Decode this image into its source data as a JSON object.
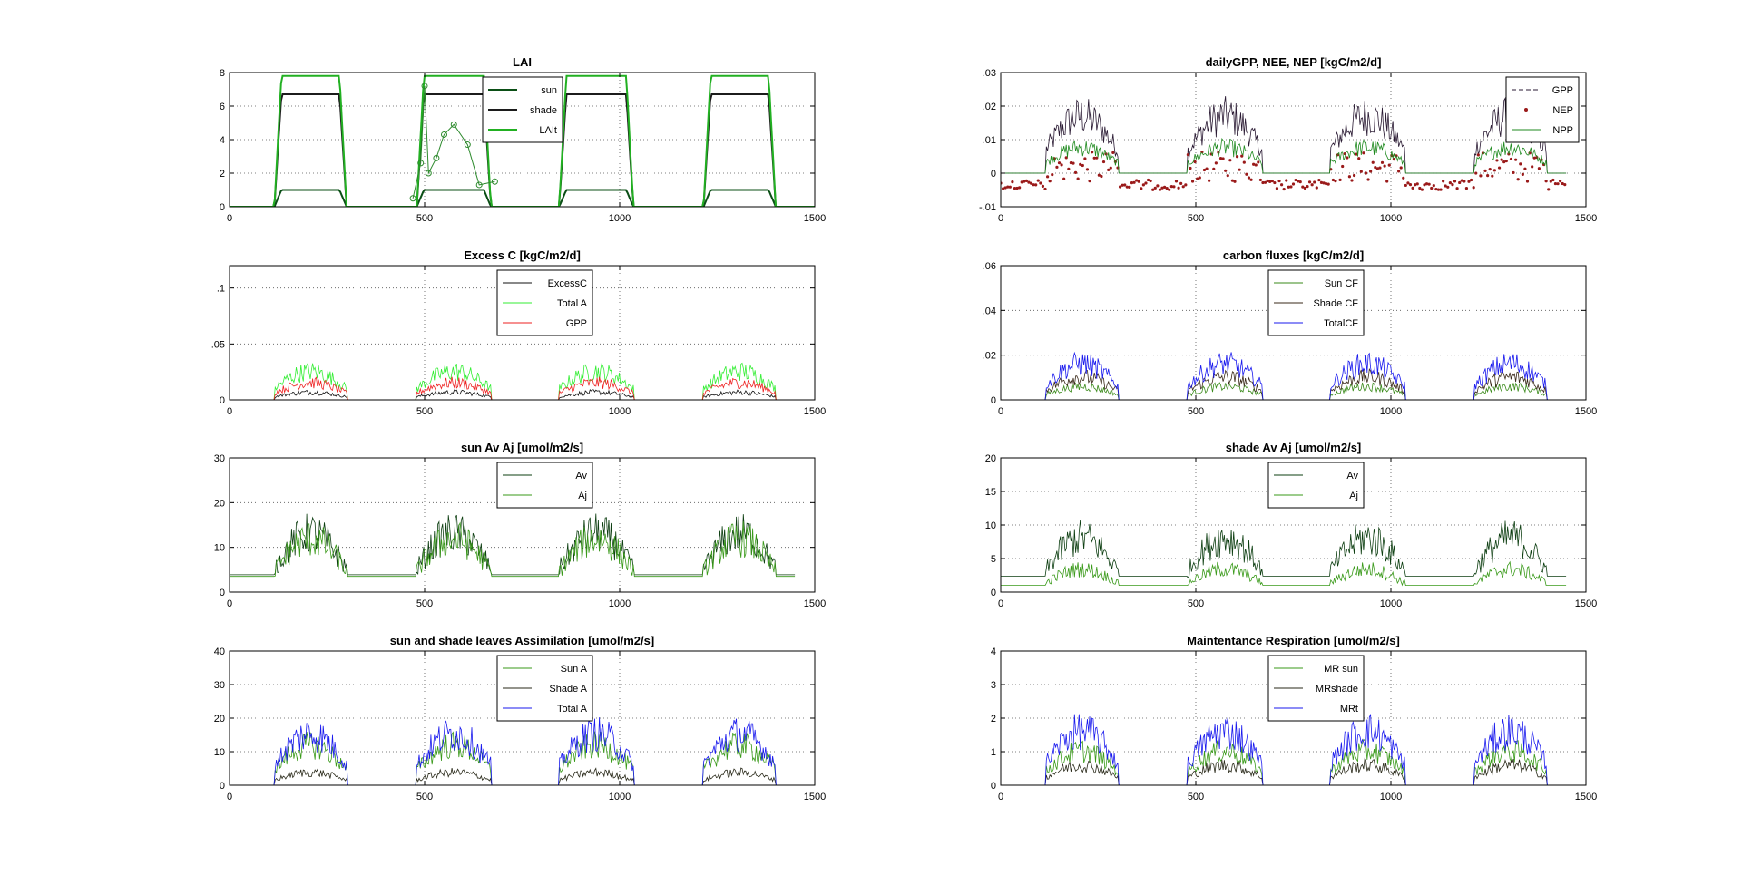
{
  "chart_data": [
    {
      "type": "line",
      "title": "LAI",
      "xlim": [
        0,
        1500
      ],
      "ylim": [
        0,
        8
      ],
      "xticks": [
        0,
        500,
        1000,
        1500
      ],
      "yticks": [
        0,
        2,
        4,
        6,
        8
      ],
      "legend": "top-center",
      "grid": true,
      "series": [
        {
          "name": "sun",
          "color": "#0b4f16",
          "style": "season",
          "ymax": 1.0
        },
        {
          "name": "shade",
          "color": "#1c1c1c",
          "style": "season",
          "ymax": 6.7
        },
        {
          "name": "LAIt",
          "color": "#22b022",
          "style": "season",
          "ymax": 7.8
        }
      ],
      "extra_points": {
        "color": "#2d8a2d",
        "x": [
          470,
          490,
          500,
          510,
          530,
          550,
          575,
          610,
          640,
          680
        ],
        "y": [
          0.5,
          2.6,
          7.2,
          2.0,
          2.9,
          4.3,
          4.9,
          3.7,
          1.3,
          1.5
        ]
      }
    },
    {
      "type": "line",
      "title": "dailyGPP, NEE, NEP [kgC/m2/d]",
      "xlim": [
        0,
        1500
      ],
      "ylim": [
        -0.01,
        0.03
      ],
      "xticks": [
        0,
        500,
        1000,
        1500
      ],
      "yticks": [
        -0.01,
        0,
        0.01,
        0.02,
        0.03
      ],
      "legend": "top-right",
      "grid": true,
      "series": [
        {
          "name": "GPP",
          "color": "#2a1a33",
          "style": "season",
          "ymax": 0.02
        },
        {
          "name": "NEP",
          "color": "#9a1a1a",
          "style": "markers",
          "ymax": 0.007
        },
        {
          "name": "NPP",
          "color": "#1f8a1f",
          "style": "season",
          "ymax": 0.009
        }
      ]
    },
    {
      "type": "line",
      "title": "Excess C [kgC/m2/d]",
      "xlim": [
        0,
        1500
      ],
      "ylim": [
        0,
        0.12
      ],
      "xticks": [
        0,
        500,
        1000,
        1500
      ],
      "yticks": [
        0,
        0.05,
        0.1
      ],
      "legend": "top-center",
      "grid": true,
      "series": [
        {
          "name": "ExcessC",
          "color": "#111111",
          "style": "season",
          "ymax": 0.008
        },
        {
          "name": "Total A",
          "color": "#33ee33",
          "style": "season",
          "ymax": 0.03
        },
        {
          "name": "GPP",
          "color": "#ee2222",
          "style": "season",
          "ymax": 0.018
        }
      ]
    },
    {
      "type": "line",
      "title": "carbon fluxes [kgC/m2/d]",
      "xlim": [
        0,
        1500
      ],
      "ylim": [
        0,
        0.06
      ],
      "xticks": [
        0,
        500,
        1000,
        1500
      ],
      "yticks": [
        0,
        0.02,
        0.04,
        0.06
      ],
      "legend": "top-center",
      "grid": true,
      "series": [
        {
          "name": "Sun CF",
          "color": "#3a8a1a",
          "style": "season",
          "ymax": 0.007
        },
        {
          "name": "Shade CF",
          "color": "#3a2a1a",
          "style": "season",
          "ymax": 0.012
        },
        {
          "name": "TotalCF",
          "color": "#1a1aee",
          "style": "season",
          "ymax": 0.019
        }
      ]
    },
    {
      "type": "line",
      "title": "sun Av Aj [umol/m2/s]",
      "xlim": [
        0,
        1500
      ],
      "ylim": [
        0,
        30
      ],
      "xticks": [
        0,
        500,
        1000,
        1500
      ],
      "yticks": [
        0,
        10,
        20,
        30
      ],
      "legend": "top-center",
      "grid": true,
      "series": [
        {
          "name": "Av",
          "color": "#0e3f12",
          "style": "season",
          "ymax": 15.5
        },
        {
          "name": "Aj",
          "color": "#3a9a1a",
          "style": "season",
          "ymax": 14.0
        }
      ]
    },
    {
      "type": "line",
      "title": "shade Av Aj [umol/m2/s]",
      "xlim": [
        0,
        1500
      ],
      "ylim": [
        0,
        20
      ],
      "xticks": [
        0,
        500,
        1000,
        1500
      ],
      "yticks": [
        0,
        5,
        10,
        15,
        20
      ],
      "legend": "top-center",
      "grid": true,
      "series": [
        {
          "name": "Av",
          "color": "#0e3f12",
          "style": "season",
          "ymax": 9.5
        },
        {
          "name": "Aj",
          "color": "#3a9a1a",
          "style": "season",
          "ymax": 4.0
        }
      ]
    },
    {
      "type": "line",
      "title": "sun and shade leaves Assimilation [umol/m2/s]",
      "xlim": [
        0,
        1500
      ],
      "ylim": [
        0,
        40
      ],
      "xticks": [
        0,
        500,
        1000,
        1500
      ],
      "yticks": [
        0,
        10,
        20,
        30,
        40
      ],
      "legend": "top-center",
      "grid": true,
      "series": [
        {
          "name": "Sun A",
          "color": "#3a9a1a",
          "style": "season",
          "ymax": 14.0
        },
        {
          "name": "Shade A",
          "color": "#2a2a1a",
          "style": "season",
          "ymax": 4.5
        },
        {
          "name": "Total A",
          "color": "#1a1aee",
          "style": "season",
          "ymax": 18.0
        }
      ]
    },
    {
      "type": "line",
      "title": "Maintentance Respiration [umol/m2/s]",
      "xlim": [
        0,
        1500
      ],
      "ylim": [
        0,
        4
      ],
      "xticks": [
        0,
        500,
        1000,
        1500
      ],
      "yticks": [
        0,
        1,
        2,
        3,
        4
      ],
      "legend": "top-center",
      "grid": true,
      "series": [
        {
          "name": "MR sun",
          "color": "#3a9a1a",
          "style": "season",
          "ymax": 1.2
        },
        {
          "name": "MRshade",
          "color": "#2a2a1a",
          "style": "season",
          "ymax": 0.7
        },
        {
          "name": "MRt",
          "color": "#1a1aee",
          "style": "season",
          "ymax": 1.9
        }
      ]
    }
  ]
}
